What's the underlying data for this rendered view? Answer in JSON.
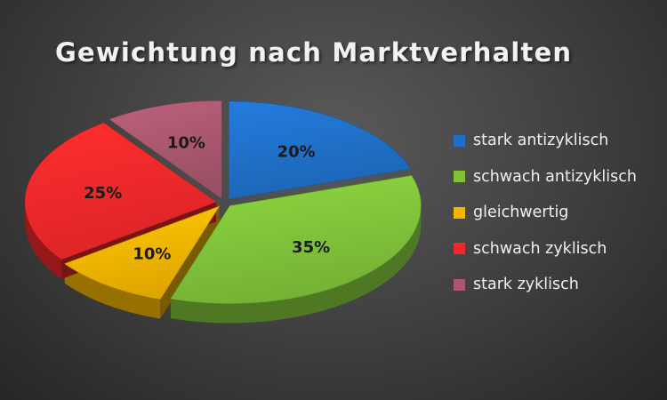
{
  "chart_data": {
    "type": "pie",
    "title": "Gewichtung nach Marktverhalten",
    "categories": [
      "stark antizyklisch",
      "schwach antizyklisch",
      "gleichwertig",
      "schwach zyklisch",
      "stark zyklisch"
    ],
    "values": [
      20,
      35,
      10,
      25,
      10
    ],
    "labels": [
      "20%",
      "35%",
      "10%",
      "25%",
      "10%"
    ],
    "colors": [
      "#1f6fc6",
      "#7fc23a",
      "#f4b400",
      "#f0282a",
      "#a9576f"
    ],
    "legend_position": "right",
    "style": "3d-exploded"
  }
}
